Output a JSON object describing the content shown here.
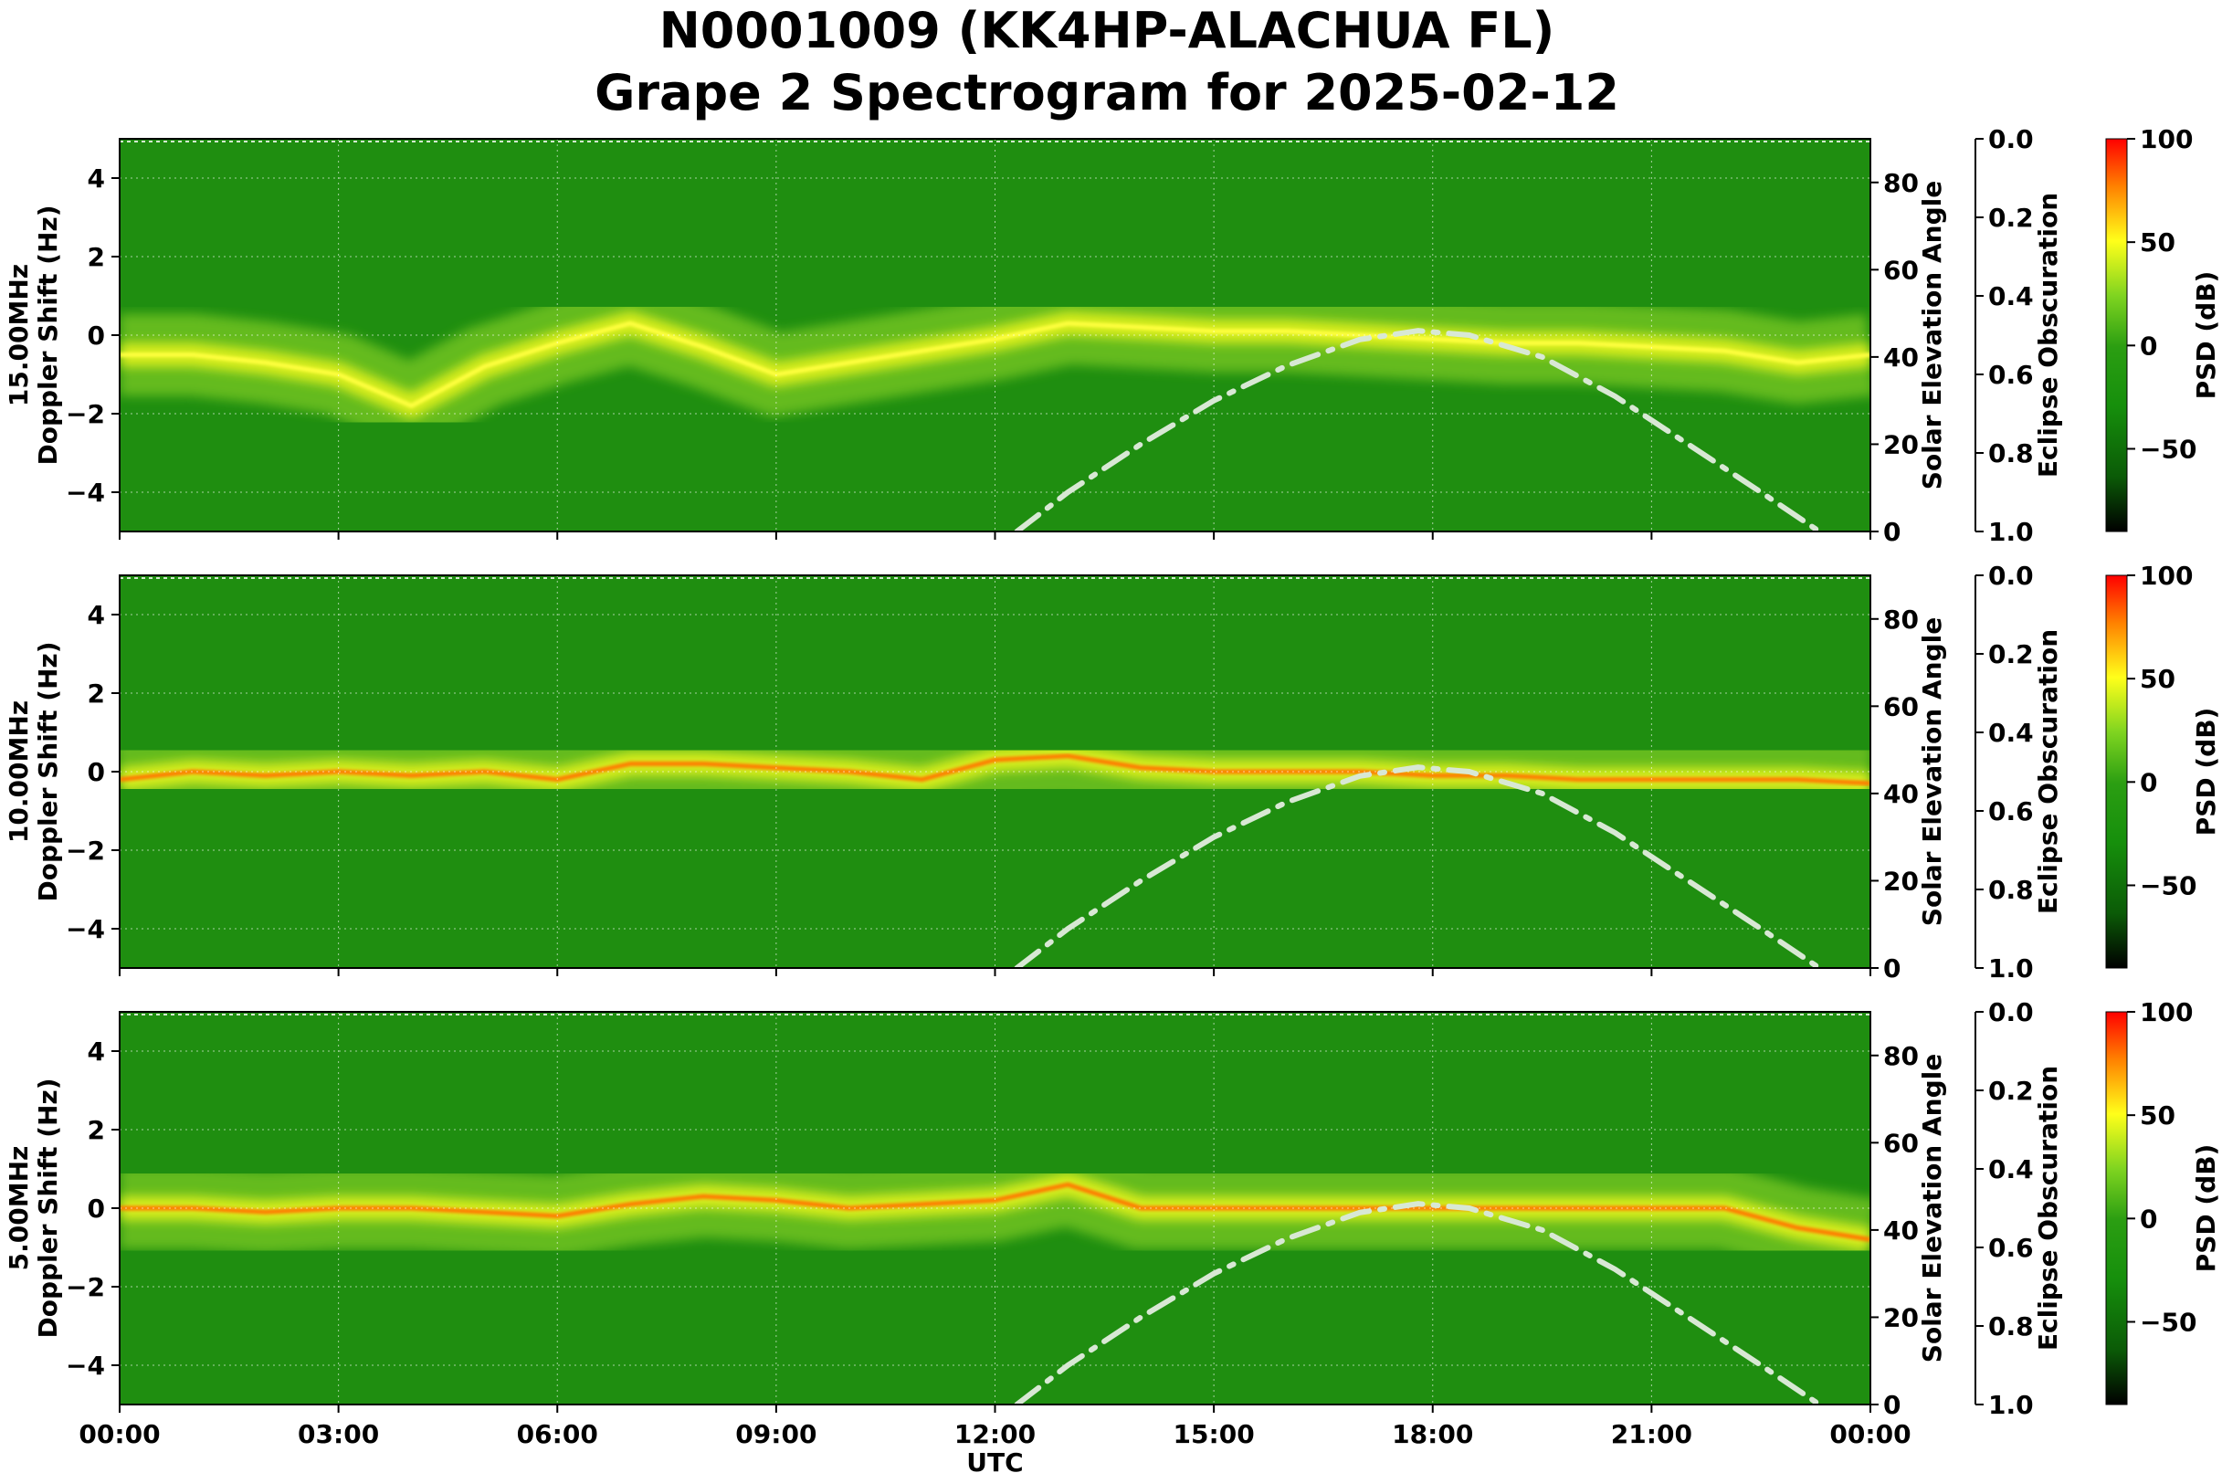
{
  "figure": {
    "title_line1": "N0001009 (KK4HP-ALACHUA FL)",
    "title_line2": "Grape 2 Spectrogram for 2025-02-12"
  },
  "colors": {
    "psd_colormap": [
      "#000000",
      "#0b5b07",
      "#168f0c",
      "#2b9e12",
      "#7fd420",
      "#ffff1a",
      "#ff8000",
      "#ff0000"
    ],
    "solar_curve": "#d8e8d4",
    "grid": "#ffffff"
  },
  "chart_data": [
    {
      "type": "heatmap",
      "panel": "15.00MHz",
      "ylabel": "15.00MHz\nDoppler Shift (Hz)",
      "xlabel": "",
      "ylim": [
        -5,
        5
      ],
      "yticks": [
        "4",
        "2",
        "0",
        "−2",
        "−4"
      ],
      "xlim_hours": [
        0,
        24
      ],
      "xtick_labels": [],
      "secondary_y": {
        "label": "Solar Elevation Angle",
        "ylim": [
          0,
          90
        ],
        "ticks": [
          "0",
          "20",
          "40",
          "60",
          "80"
        ]
      },
      "obscuration": {
        "label": "Eclipse Obscuration",
        "ylim": [
          0.0,
          1.0
        ],
        "ticks": [
          "0.0",
          "0.2",
          "0.4",
          "0.6",
          "0.8",
          "1.0"
        ]
      },
      "colorbar": {
        "label": "PSD (dB)",
        "range": [
          -90,
          100
        ],
        "ticks": [
          "100",
          "50",
          "0",
          "−50"
        ]
      },
      "solar_elevation": {
        "x_hours": [
          12.3,
          13,
          14,
          15,
          16,
          17,
          17.8,
          18.5,
          19.5,
          20.5,
          21.5,
          22.5,
          23.3
        ],
        "y_deg": [
          0,
          9,
          20,
          30,
          38,
          44,
          46,
          45,
          40,
          31,
          20,
          9,
          0
        ]
      },
      "doppler_trace": {
        "x_hours": [
          0,
          1,
          2,
          3,
          4,
          5,
          6,
          7,
          8,
          9,
          10,
          11,
          12,
          13,
          14,
          15,
          16,
          17,
          18,
          19,
          20,
          21,
          22,
          23,
          24
        ],
        "y_hz": [
          -0.5,
          -0.5,
          -0.7,
          -1.0,
          -1.8,
          -0.8,
          -0.2,
          0.3,
          -0.3,
          -1.0,
          null,
          null,
          -0.1,
          0.3,
          0.2,
          0.1,
          0.1,
          0.0,
          -0.1,
          -0.2,
          -0.2,
          -0.3,
          -0.4,
          -0.7,
          -0.5
        ]
      }
    },
    {
      "type": "heatmap",
      "panel": "10.00MHz",
      "ylabel": "10.00MHz\nDoppler Shift (Hz)",
      "xlabel": "",
      "ylim": [
        -5,
        5
      ],
      "yticks": [
        "4",
        "2",
        "0",
        "−2",
        "−4"
      ],
      "xlim_hours": [
        0,
        24
      ],
      "xtick_labels": [],
      "secondary_y": {
        "label": "Solar Elevation Angle",
        "ylim": [
          0,
          90
        ],
        "ticks": [
          "0",
          "20",
          "40",
          "60",
          "80"
        ]
      },
      "obscuration": {
        "label": "Eclipse Obscuration",
        "ylim": [
          0.0,
          1.0
        ],
        "ticks": [
          "0.0",
          "0.2",
          "0.4",
          "0.6",
          "0.8",
          "1.0"
        ]
      },
      "colorbar": {
        "label": "PSD (dB)",
        "range": [
          -90,
          100
        ],
        "ticks": [
          "100",
          "50",
          "0",
          "−50"
        ]
      },
      "solar_elevation": {
        "x_hours": [
          12.3,
          13,
          14,
          15,
          16,
          17,
          17.8,
          18.5,
          19.5,
          20.5,
          21.5,
          22.5,
          23.3
        ],
        "y_deg": [
          0,
          9,
          20,
          30,
          38,
          44,
          46,
          45,
          40,
          31,
          20,
          9,
          0
        ]
      },
      "doppler_trace": {
        "x_hours": [
          0,
          1,
          2,
          3,
          4,
          5,
          6,
          7,
          8,
          9,
          10,
          11,
          12,
          13,
          14,
          15,
          16,
          17,
          18,
          19,
          20,
          21,
          22,
          23,
          24
        ],
        "y_hz": [
          -0.2,
          0.0,
          -0.1,
          0.0,
          -0.1,
          0.0,
          -0.2,
          0.2,
          0.2,
          0.1,
          0.0,
          -0.2,
          0.3,
          0.4,
          0.1,
          0.0,
          0.0,
          0.0,
          -0.1,
          -0.1,
          -0.2,
          -0.2,
          -0.2,
          -0.2,
          -0.3
        ]
      }
    },
    {
      "type": "heatmap",
      "panel": "5.00MHz",
      "ylabel": "5.00MHz\nDoppler Shift (Hz)",
      "xlabel": "UTC",
      "ylim": [
        -5,
        5
      ],
      "yticks": [
        "4",
        "2",
        "0",
        "−2",
        "−4"
      ],
      "xlim_hours": [
        0,
        24
      ],
      "xtick_labels": [
        "00:00",
        "03:00",
        "06:00",
        "09:00",
        "12:00",
        "15:00",
        "18:00",
        "21:00",
        "00:00"
      ],
      "secondary_y": {
        "label": "Solar Elevation Angle",
        "ylim": [
          0,
          90
        ],
        "ticks": [
          "0",
          "20",
          "40",
          "60",
          "80"
        ]
      },
      "obscuration": {
        "label": "Eclipse Obscuration",
        "ylim": [
          0.0,
          1.0
        ],
        "ticks": [
          "0.0",
          "0.2",
          "0.4",
          "0.6",
          "0.8",
          "1.0"
        ]
      },
      "colorbar": {
        "label": "PSD (dB)",
        "range": [
          -90,
          100
        ],
        "ticks": [
          "100",
          "50",
          "0",
          "−50"
        ]
      },
      "solar_elevation": {
        "x_hours": [
          12.3,
          13,
          14,
          15,
          16,
          17,
          17.8,
          18.5,
          19.5,
          20.5,
          21.5,
          22.5,
          23.3
        ],
        "y_deg": [
          0,
          9,
          20,
          30,
          38,
          44,
          46,
          45,
          40,
          31,
          20,
          9,
          0
        ]
      },
      "doppler_trace": {
        "x_hours": [
          0,
          1,
          2,
          3,
          4,
          5,
          6,
          7,
          8,
          9,
          10,
          11,
          12,
          13,
          14,
          15,
          16,
          17,
          18,
          19,
          20,
          21,
          22,
          23,
          24
        ],
        "y_hz": [
          0.0,
          0.0,
          -0.1,
          0.0,
          0.0,
          -0.1,
          -0.2,
          0.1,
          0.3,
          0.2,
          0.0,
          0.1,
          0.2,
          0.6,
          0.0,
          0.0,
          0.0,
          0.0,
          0.0,
          0.0,
          0.0,
          0.0,
          0.0,
          -0.5,
          -0.8
        ]
      }
    }
  ]
}
